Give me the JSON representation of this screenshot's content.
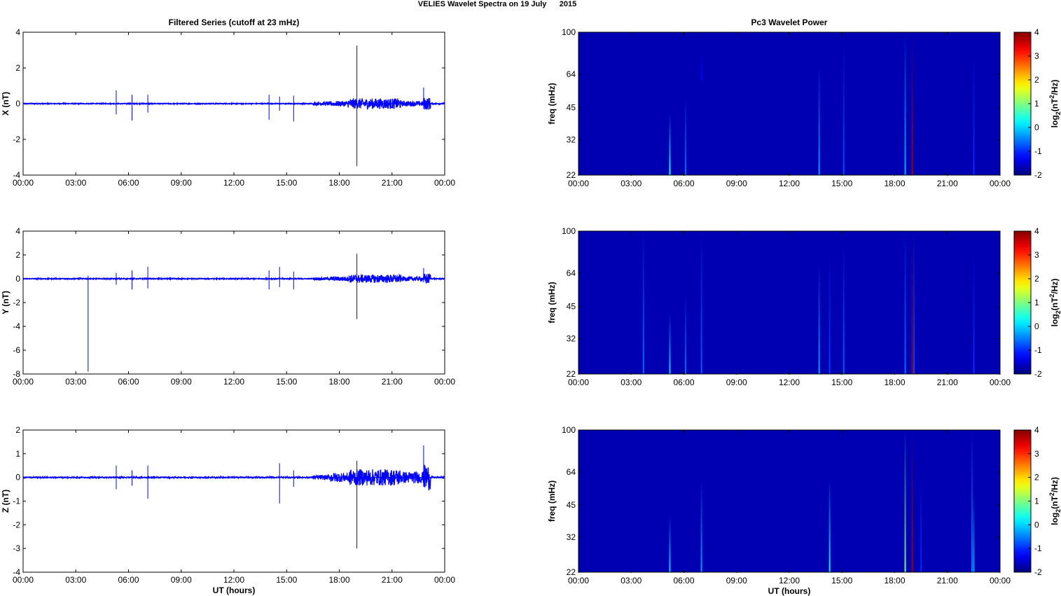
{
  "figure": {
    "suptitle": "VELIES Wavelet Spectra on 19 July      2015",
    "left_title": "Filtered Series (cutoff at 23 mHz)",
    "right_title": "Pc3 Wavelet Power"
  },
  "colors": {
    "trace": "#0000ff",
    "heatmap_background": "#00008f",
    "colormap": "jet"
  },
  "chart_data": [
    {
      "type": "line",
      "ylabel": "X (nT)",
      "xlabel": "",
      "ylim": [
        -4,
        4
      ],
      "yticks": [
        "4",
        "2",
        "0",
        "-2",
        "-4"
      ],
      "xlim_hours": [
        0,
        24
      ],
      "xticks": [
        "00:00",
        "03:00",
        "06:00",
        "09:00",
        "12:00",
        "15:00",
        "18:00",
        "21:00",
        "00:00"
      ],
      "baseline_noise": [
        [
          0,
          0.03
        ],
        [
          16.5,
          0.1
        ],
        [
          17.5,
          0.15
        ],
        [
          18.5,
          0.3
        ],
        [
          21.5,
          0.15
        ],
        [
          22.8,
          0.35
        ],
        [
          23.2,
          0.04
        ]
      ],
      "spikes": [
        [
          5.3,
          0.75,
          -0.6
        ],
        [
          6.2,
          0.5,
          -0.95
        ],
        [
          7.1,
          0.5,
          -0.5
        ],
        [
          14.0,
          0.5,
          -0.9
        ],
        [
          14.6,
          0.4,
          -0.4
        ],
        [
          15.4,
          0.45,
          -1.0
        ],
        [
          19.0,
          3.25,
          -3.5
        ],
        [
          22.8,
          0.9,
          -0.3
        ]
      ]
    },
    {
      "type": "line",
      "ylabel": "Y (nT)",
      "xlabel": "",
      "ylim": [
        -8,
        4
      ],
      "yticks": [
        "4",
        "2",
        "0",
        "-2",
        "-4",
        "-6",
        "-8"
      ],
      "xlim_hours": [
        0,
        24
      ],
      "xticks": [
        "00:00",
        "03:00",
        "06:00",
        "09:00",
        "12:00",
        "15:00",
        "18:00",
        "21:00",
        "00:00"
      ],
      "baseline_noise": [
        [
          0,
          0.05
        ],
        [
          16.5,
          0.12
        ],
        [
          17.5,
          0.2
        ],
        [
          18.5,
          0.35
        ],
        [
          21.5,
          0.2
        ],
        [
          22.8,
          0.45
        ],
        [
          23.2,
          0.05
        ]
      ],
      "spikes": [
        [
          3.7,
          0.25,
          -7.8
        ],
        [
          5.3,
          0.5,
          -0.5
        ],
        [
          6.2,
          0.7,
          -0.9
        ],
        [
          7.1,
          1.0,
          -0.8
        ],
        [
          14.0,
          0.7,
          -0.9
        ],
        [
          14.6,
          1.0,
          -0.7
        ],
        [
          15.4,
          0.6,
          -0.9
        ],
        [
          19.0,
          2.1,
          -3.4
        ],
        [
          22.8,
          0.9,
          -0.3
        ]
      ]
    },
    {
      "type": "line",
      "ylabel": "Z (nT)",
      "xlabel": "UT (hours)",
      "ylim": [
        -4,
        2
      ],
      "yticks": [
        "2",
        "1",
        "0",
        "-1",
        "-2",
        "-3",
        "-4"
      ],
      "xlim_hours": [
        0,
        24
      ],
      "xticks": [
        "00:00",
        "03:00",
        "06:00",
        "09:00",
        "12:00",
        "15:00",
        "18:00",
        "21:00",
        "00:00"
      ],
      "baseline_noise": [
        [
          0,
          0.03
        ],
        [
          16.5,
          0.1
        ],
        [
          17.5,
          0.2
        ],
        [
          18.5,
          0.35
        ],
        [
          21.5,
          0.25
        ],
        [
          22.8,
          0.55
        ],
        [
          23.2,
          0.04
        ]
      ],
      "spikes": [
        [
          5.3,
          0.5,
          -0.5
        ],
        [
          6.2,
          0.3,
          -0.35
        ],
        [
          7.1,
          0.5,
          -0.9
        ],
        [
          14.6,
          0.6,
          -1.1
        ],
        [
          15.4,
          0.3,
          -0.4
        ],
        [
          19.0,
          0.7,
          -3.0
        ],
        [
          22.8,
          1.35,
          -0.4
        ]
      ]
    },
    {
      "type": "heatmap",
      "ylabel": "freq (mHz)",
      "xlabel": "",
      "ylim": [
        22,
        100
      ],
      "ytick_values": [
        100,
        64,
        45,
        32,
        22
      ],
      "yticks": [
        "100",
        "64",
        "45",
        "32",
        "22"
      ],
      "xlim_hours": [
        0,
        24
      ],
      "xticks": [
        "00:00",
        "03:00",
        "06:00",
        "09:00",
        "12:00",
        "15:00",
        "18:00",
        "21:00",
        "00:00"
      ],
      "colorbar_label": "log2(nT2/Hz)",
      "colorbar_ticks": [
        "4",
        "3",
        "2",
        "1",
        "0",
        "-1",
        "-2"
      ],
      "clim": [
        -2,
        4
      ],
      "background_level": -1.7,
      "streaks": [
        [
          5.2,
          22,
          42,
          0.3
        ],
        [
          6.1,
          22,
          50,
          -0.6
        ],
        [
          7.0,
          60,
          80,
          -1.2
        ],
        [
          13.7,
          22,
          70,
          -0.3
        ],
        [
          15.1,
          22,
          85,
          -0.8
        ],
        [
          18.6,
          22,
          100,
          -0.2
        ],
        [
          19.0,
          22,
          100,
          3.8
        ],
        [
          22.5,
          22,
          80,
          -1.0
        ]
      ]
    },
    {
      "type": "heatmap",
      "ylabel": "freq (mHz)",
      "xlabel": "",
      "ylim": [
        22,
        100
      ],
      "ytick_values": [
        100,
        64,
        45,
        32,
        22
      ],
      "yticks": [
        "100",
        "64",
        "45",
        "32",
        "22"
      ],
      "xlim_hours": [
        0,
        24
      ],
      "xticks": [
        "00:00",
        "03:00",
        "06:00",
        "09:00",
        "12:00",
        "15:00",
        "18:00",
        "21:00",
        "00:00"
      ],
      "colorbar_label": "log2(nT2/Hz)",
      "colorbar_ticks": [
        "4",
        "3",
        "2",
        "1",
        "0",
        "-1",
        "-2"
      ],
      "clim": [
        -2,
        4
      ],
      "background_level": -1.7,
      "streaks": [
        [
          3.7,
          22,
          100,
          -0.6
        ],
        [
          5.2,
          22,
          42,
          0.0
        ],
        [
          6.1,
          22,
          50,
          -0.6
        ],
        [
          7.0,
          22,
          100,
          -0.7
        ],
        [
          13.7,
          22,
          70,
          -0.3
        ],
        [
          14.3,
          22,
          80,
          -0.9
        ],
        [
          15.1,
          22,
          85,
          -0.7
        ],
        [
          18.6,
          22,
          100,
          -0.6
        ],
        [
          19.0,
          22,
          100,
          3.8
        ],
        [
          19.1,
          22,
          100,
          -0.8
        ],
        [
          22.5,
          22,
          80,
          -1.0
        ]
      ]
    },
    {
      "type": "heatmap",
      "ylabel": "freq (mHz)",
      "xlabel": "UT (hours)",
      "ylim": [
        22,
        100
      ],
      "ytick_values": [
        100,
        64,
        45,
        32,
        22
      ],
      "yticks": [
        "100",
        "64",
        "45",
        "32",
        "22"
      ],
      "xlim_hours": [
        0,
        24
      ],
      "xticks": [
        "00:00",
        "03:00",
        "06:00",
        "09:00",
        "12:00",
        "15:00",
        "18:00",
        "21:00",
        "00:00"
      ],
      "colorbar_label": "log2(nT2/Hz)",
      "colorbar_ticks": [
        "4",
        "3",
        "2",
        "1",
        "0",
        "-1",
        "-2"
      ],
      "clim": [
        -2,
        4
      ],
      "background_level": -1.7,
      "streaks": [
        [
          5.2,
          22,
          40,
          0.0
        ],
        [
          7.0,
          22,
          60,
          -0.3
        ],
        [
          14.3,
          22,
          60,
          0.2
        ],
        [
          18.6,
          22,
          100,
          1.0
        ],
        [
          19.0,
          22,
          100,
          3.8
        ],
        [
          19.5,
          22,
          60,
          -1.0
        ],
        [
          22.4,
          22,
          100,
          -0.5
        ],
        [
          22.5,
          22,
          50,
          -0.3
        ]
      ]
    }
  ]
}
